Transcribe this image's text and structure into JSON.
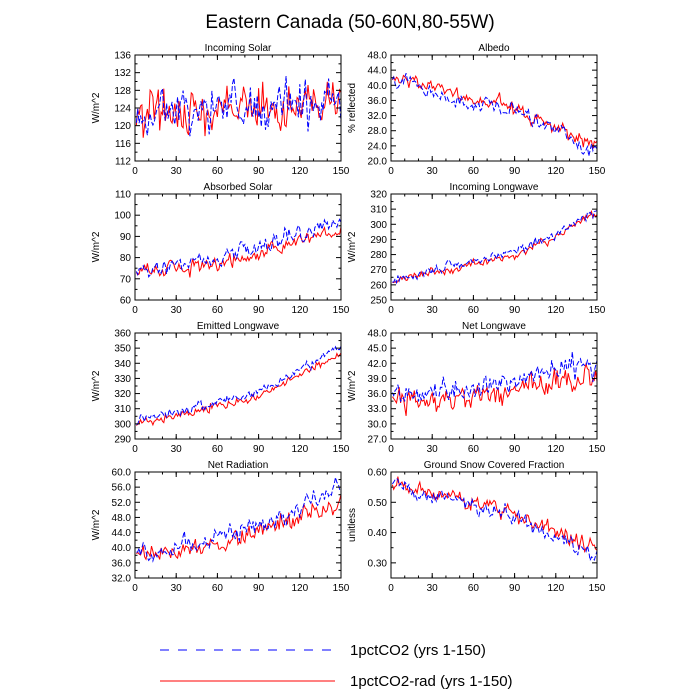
{
  "figure_title": "Eastern Canada (50-60N,80-55W)",
  "legend": [
    {
      "label": "1pctCO2 (yrs 1-150)",
      "color": "#0000ff",
      "dash": "dashed"
    },
    {
      "label": "1pctCO2-rad (yrs 1-150)",
      "color": "#ff0000",
      "dash": "solid"
    }
  ],
  "chart_data": [
    {
      "type": "line",
      "title": "Incoming Solar",
      "ylabel": "W/m^2",
      "xlim": [
        0,
        150
      ],
      "xticks": [
        0,
        30,
        60,
        90,
        120,
        150
      ],
      "ylim": [
        112,
        136
      ],
      "yticks": [
        112,
        116,
        120,
        124,
        128,
        132,
        136
      ],
      "ytick_decimals": 0,
      "trend": [
        [
          0,
          123,
          123
        ],
        [
          150,
          125,
          125
        ]
      ],
      "amp": [
        4.0,
        4.0
      ],
      "seed": 1
    },
    {
      "type": "line",
      "title": "Albedo",
      "ylabel": "% reflected",
      "xlim": [
        0,
        150
      ],
      "xticks": [
        0,
        30,
        60,
        90,
        120,
        150
      ],
      "ylim": [
        20,
        48
      ],
      "yticks": [
        20,
        24,
        28,
        32,
        36,
        40,
        44,
        48
      ],
      "ytick_decimals": 1,
      "trend": [
        [
          0,
          41,
          41
        ],
        [
          15,
          41.5,
          42
        ],
        [
          30,
          38,
          39.5
        ],
        [
          60,
          35,
          36.5
        ],
        [
          90,
          33,
          34
        ],
        [
          120,
          28,
          29
        ],
        [
          150,
          22,
          24
        ]
      ],
      "amp": [
        1.6,
        1.6
      ],
      "seed": 2
    },
    {
      "type": "line",
      "title": "Absorbed Solar",
      "ylabel": "W/m^2",
      "xlim": [
        0,
        150
      ],
      "xticks": [
        0,
        30,
        60,
        90,
        120,
        150
      ],
      "ylim": [
        60,
        110
      ],
      "yticks": [
        60,
        70,
        80,
        90,
        100,
        110
      ],
      "ytick_decimals": 0,
      "trend": [
        [
          0,
          73,
          73
        ],
        [
          30,
          77,
          75
        ],
        [
          60,
          80,
          77
        ],
        [
          90,
          84,
          81
        ],
        [
          120,
          92,
          88
        ],
        [
          150,
          98,
          92
        ]
      ],
      "amp": [
        3.0,
        3.0
      ],
      "seed": 3
    },
    {
      "type": "line",
      "title": "Incoming Longwave",
      "ylabel": "W/m^2",
      "xlim": [
        0,
        150
      ],
      "xticks": [
        0,
        30,
        60,
        90,
        120,
        150
      ],
      "ylim": [
        250,
        320
      ],
      "yticks": [
        250,
        260,
        270,
        280,
        290,
        300,
        310,
        320
      ],
      "ytick_decimals": 0,
      "trend": [
        [
          0,
          262,
          262
        ],
        [
          30,
          270,
          268
        ],
        [
          60,
          276,
          274
        ],
        [
          90,
          282,
          280
        ],
        [
          120,
          294,
          292
        ],
        [
          150,
          310,
          307
        ]
      ],
      "amp": [
        2.5,
        2.5
      ],
      "seed": 4
    },
    {
      "type": "line",
      "title": "Emitted Longwave",
      "ylabel": "W/m^2",
      "xlim": [
        0,
        150
      ],
      "xticks": [
        0,
        30,
        60,
        90,
        120,
        150
      ],
      "ylim": [
        290,
        360
      ],
      "yticks": [
        290,
        300,
        310,
        320,
        330,
        340,
        350,
        360
      ],
      "ytick_decimals": 0,
      "trend": [
        [
          0,
          300,
          300
        ],
        [
          30,
          308,
          305
        ],
        [
          60,
          315,
          312
        ],
        [
          90,
          320,
          318
        ],
        [
          120,
          335,
          332
        ],
        [
          150,
          352,
          346
        ]
      ],
      "amp": [
        2.5,
        2.5
      ],
      "seed": 5
    },
    {
      "type": "line",
      "title": "Net Longwave",
      "ylabel": "W/m^2",
      "xlim": [
        0,
        150
      ],
      "xticks": [
        0,
        30,
        60,
        90,
        120,
        150
      ],
      "ylim": [
        27,
        48
      ],
      "yticks": [
        27,
        30,
        33,
        36,
        39,
        42,
        45,
        48
      ],
      "ytick_decimals": 1,
      "trend": [
        [
          0,
          35,
          34.5
        ],
        [
          30,
          35.5,
          34.5
        ],
        [
          60,
          37,
          35.5
        ],
        [
          90,
          38,
          37
        ],
        [
          120,
          40.5,
          38.5
        ],
        [
          150,
          42,
          39
        ]
      ],
      "amp": [
        2.0,
        2.0
      ],
      "seed": 6
    },
    {
      "type": "line",
      "title": "Net Radiation",
      "ylabel": "W/m^2",
      "xlim": [
        0,
        150
      ],
      "xticks": [
        0,
        30,
        60,
        90,
        120,
        150
      ],
      "ylim": [
        32,
        60
      ],
      "yticks": [
        32,
        36,
        40,
        44,
        48,
        52,
        56,
        60
      ],
      "ytick_decimals": 1,
      "trend": [
        [
          0,
          38,
          38
        ],
        [
          30,
          40,
          39
        ],
        [
          60,
          43,
          41
        ],
        [
          90,
          46,
          44
        ],
        [
          120,
          51,
          49
        ],
        [
          150,
          56,
          52
        ]
      ],
      "amp": [
        2.0,
        2.0
      ],
      "seed": 7
    },
    {
      "type": "line",
      "title": "Ground Snow Covered Fraction",
      "ylabel": "unitless",
      "xlim": [
        0,
        150
      ],
      "xticks": [
        0,
        30,
        60,
        90,
        120,
        150
      ],
      "ylim": [
        0.25,
        0.6
      ],
      "yticks": [
        0.3,
        0.4,
        0.5,
        0.6
      ],
      "ytick_decimals": 2,
      "trend": [
        [
          0,
          0.56,
          0.56
        ],
        [
          30,
          0.52,
          0.53
        ],
        [
          60,
          0.49,
          0.5
        ],
        [
          90,
          0.45,
          0.46
        ],
        [
          120,
          0.38,
          0.4
        ],
        [
          150,
          0.32,
          0.34
        ]
      ],
      "amp": [
        0.02,
        0.02
      ],
      "seed": 8
    }
  ]
}
